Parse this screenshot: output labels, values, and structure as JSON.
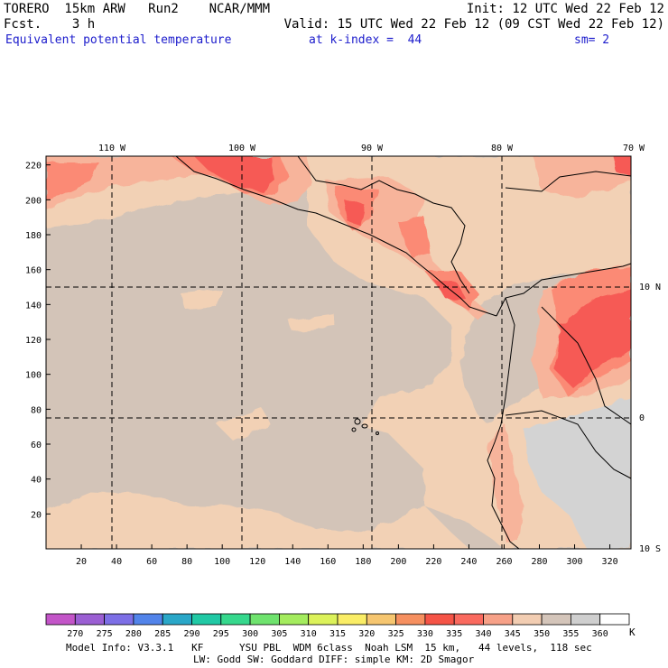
{
  "header": {
    "line1_left": "TORERO  15km ARW   Run2    NCAR/MMM",
    "line1_right": "Init: 12 UTC Wed 22 Feb 12",
    "line2_left": "Fcst.    3 h",
    "line2_right": "Valid: 15 UTC Wed 22 Feb 12 (09 CST Wed 22 Feb 12)",
    "line3_left": "Equivalent potential temperature",
    "line3_mid": "at k-index =  44",
    "line3_right": "sm= 2"
  },
  "map": {
    "lon_labels": [
      "110 W",
      "100 W",
      "90 W",
      "80 W",
      "70 W"
    ],
    "lat_labels": [
      "10 N",
      "0",
      "10 S"
    ],
    "x_ticks": [
      "20",
      "40",
      "60",
      "80",
      "100",
      "120",
      "140",
      "160",
      "180",
      "200",
      "220",
      "240",
      "260",
      "280",
      "300",
      "320"
    ],
    "y_ticks": [
      "20",
      "40",
      "60",
      "80",
      "100",
      "120",
      "140",
      "160",
      "180",
      "200",
      "220"
    ],
    "colors": {
      "ocean_bg": "#d3c4b8",
      "c345": "#f2d1b5",
      "c340": "#f7b49b",
      "c335": "#fb8a74",
      "c330": "#f65a54",
      "c350": "#d3d3d3"
    }
  },
  "colorbar": {
    "unit": "K",
    "labels": [
      "270",
      "275",
      "280",
      "285",
      "290",
      "295",
      "300",
      "305",
      "310",
      "315",
      "320",
      "325",
      "330",
      "335",
      "340",
      "345",
      "350",
      "355",
      "360"
    ],
    "colors": [
      "#c355c8",
      "#9b5fd3",
      "#7d6fe6",
      "#5284ea",
      "#2aa7c8",
      "#21c9a5",
      "#36d88d",
      "#6fe36e",
      "#a4ec5e",
      "#dcf25a",
      "#faed66",
      "#f6c670",
      "#f69060",
      "#f55447",
      "#fa6a5f",
      "#f7a188",
      "#f2cdb2",
      "#d4c5ba",
      "#cfcfcf",
      "#ffffff"
    ]
  },
  "footer": {
    "line1": "Model Info: V3.3.1   KF      YSU PBL  WDM 6class  Noah LSM  15 km,   44 levels,  118 sec",
    "line2": "LW: Godd SW: Goddard DIFF: simple KM: 2D Smagor"
  }
}
